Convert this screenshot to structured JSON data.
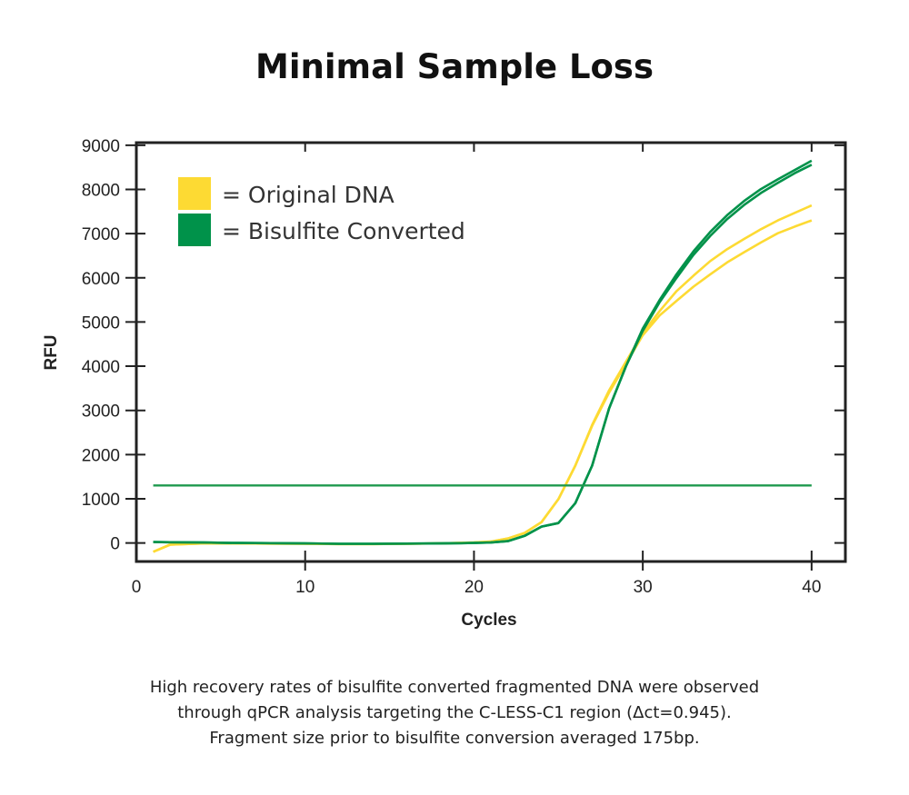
{
  "title": "Minimal Sample Loss",
  "caption": [
    "High recovery rates of bisulfite converted fragmented DNA were observed",
    "through qPCR analysis targeting the C-LESS-C1 region (Δct=0.945).",
    "Fragment size prior to bisulfite conversion averaged 175bp."
  ],
  "chart_data": {
    "type": "line",
    "title": "",
    "xlabel": "Cycles",
    "ylabel": "RFU",
    "xlim": [
      0,
      42
    ],
    "ylim": [
      -420,
      9060
    ],
    "xticks": [
      0,
      10,
      20,
      30,
      40
    ],
    "yticks": [
      0,
      1000,
      2000,
      3000,
      4000,
      5000,
      6000,
      7000,
      8000,
      9000
    ],
    "grid": false,
    "legend": {
      "placement": "top-left",
      "entries": [
        {
          "label": "= Original DNA",
          "color": "#FDDA33"
        },
        {
          "label": "= Bisulfite Converted",
          "color": "#00924A"
        }
      ]
    },
    "threshold": {
      "value": 1300,
      "x_range": [
        1,
        40
      ],
      "color": "#1E9A4E"
    },
    "x": [
      1,
      2,
      4,
      6,
      8,
      10,
      12,
      14,
      16,
      18,
      20,
      21,
      22,
      23,
      24,
      25,
      26,
      27,
      28,
      29,
      30,
      31,
      32,
      33,
      34,
      35,
      36,
      37,
      38,
      39,
      40
    ],
    "series": [
      {
        "group": "Original DNA",
        "color": "#FDDA33",
        "values": [
          -200,
          -40,
          -10,
          -10,
          -15,
          -20,
          -25,
          -25,
          -20,
          -10,
          10,
          30,
          100,
          225,
          470,
          990,
          1750,
          2670,
          3450,
          4100,
          4750,
          5250,
          5700,
          6050,
          6380,
          6650,
          6880,
          7100,
          7300,
          7470,
          7640
        ]
      },
      {
        "group": "Original DNA",
        "color": "#FDDA33",
        "values": [
          -200,
          -40,
          -10,
          -10,
          -15,
          -20,
          -25,
          -25,
          -20,
          -10,
          10,
          30,
          100,
          225,
          470,
          990,
          1750,
          2650,
          3400,
          4050,
          4700,
          5150,
          5480,
          5800,
          6080,
          6350,
          6580,
          6800,
          7010,
          7160,
          7300
        ]
      },
      {
        "group": "Bisulfite Converted",
        "color": "#00924A",
        "values": [
          20,
          15,
          10,
          0,
          -5,
          -10,
          -20,
          -20,
          -15,
          -10,
          0,
          10,
          40,
          160,
          370,
          450,
          900,
          1750,
          3040,
          4000,
          4800,
          5450,
          6000,
          6520,
          6950,
          7330,
          7650,
          7920,
          8150,
          8370,
          8560
        ]
      },
      {
        "group": "Bisulfite Converted",
        "color": "#00924A",
        "values": [
          20,
          15,
          10,
          0,
          -5,
          -10,
          -20,
          -20,
          -15,
          -10,
          0,
          10,
          40,
          160,
          370,
          450,
          900,
          1750,
          3040,
          4000,
          4850,
          5500,
          6080,
          6600,
          7040,
          7420,
          7740,
          8010,
          8230,
          8440,
          8650
        ]
      }
    ]
  }
}
